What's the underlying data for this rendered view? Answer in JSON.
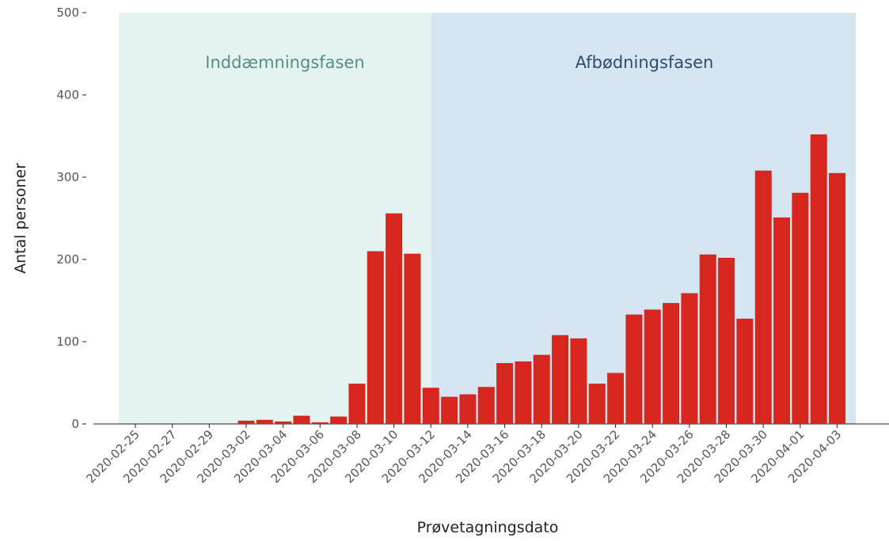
{
  "chart_data": {
    "type": "bar",
    "x_label": "Prøvetagningsdato",
    "y_label": "Antal personer",
    "annotations": [
      "Inddæmningsfasen",
      "Afbødningsfasen"
    ],
    "categories": [
      "2020-02-25",
      null,
      "2020-02-27",
      null,
      "2020-02-29",
      null,
      "2020-03-02",
      null,
      "2020-03-04",
      null,
      "2020-03-06",
      null,
      "2020-03-08",
      null,
      "2020-03-10",
      null,
      "2020-03-12",
      null,
      "2020-03-14",
      null,
      "2020-03-16",
      null,
      "2020-03-18",
      null,
      "2020-03-20",
      null,
      "2020-03-22",
      null,
      "2020-03-24",
      null,
      "2020-03-26",
      null,
      "2020-03-28",
      null,
      "2020-03-30",
      null,
      "2020-04-01",
      null,
      "2020-04-03"
    ],
    "values": [
      0,
      0,
      0,
      0,
      0,
      0,
      4,
      5,
      3,
      10,
      2,
      9,
      49,
      210,
      256,
      207,
      44,
      33,
      36,
      45,
      74,
      76,
      84,
      108,
      104,
      49,
      62,
      133,
      139,
      147,
      159,
      206,
      202,
      128,
      308,
      251,
      281,
      352,
      305
    ],
    "color": "#d7261e",
    "ylim": [
      0,
      500
    ],
    "yticks": [
      0,
      100,
      200,
      300,
      400,
      500
    ]
  }
}
